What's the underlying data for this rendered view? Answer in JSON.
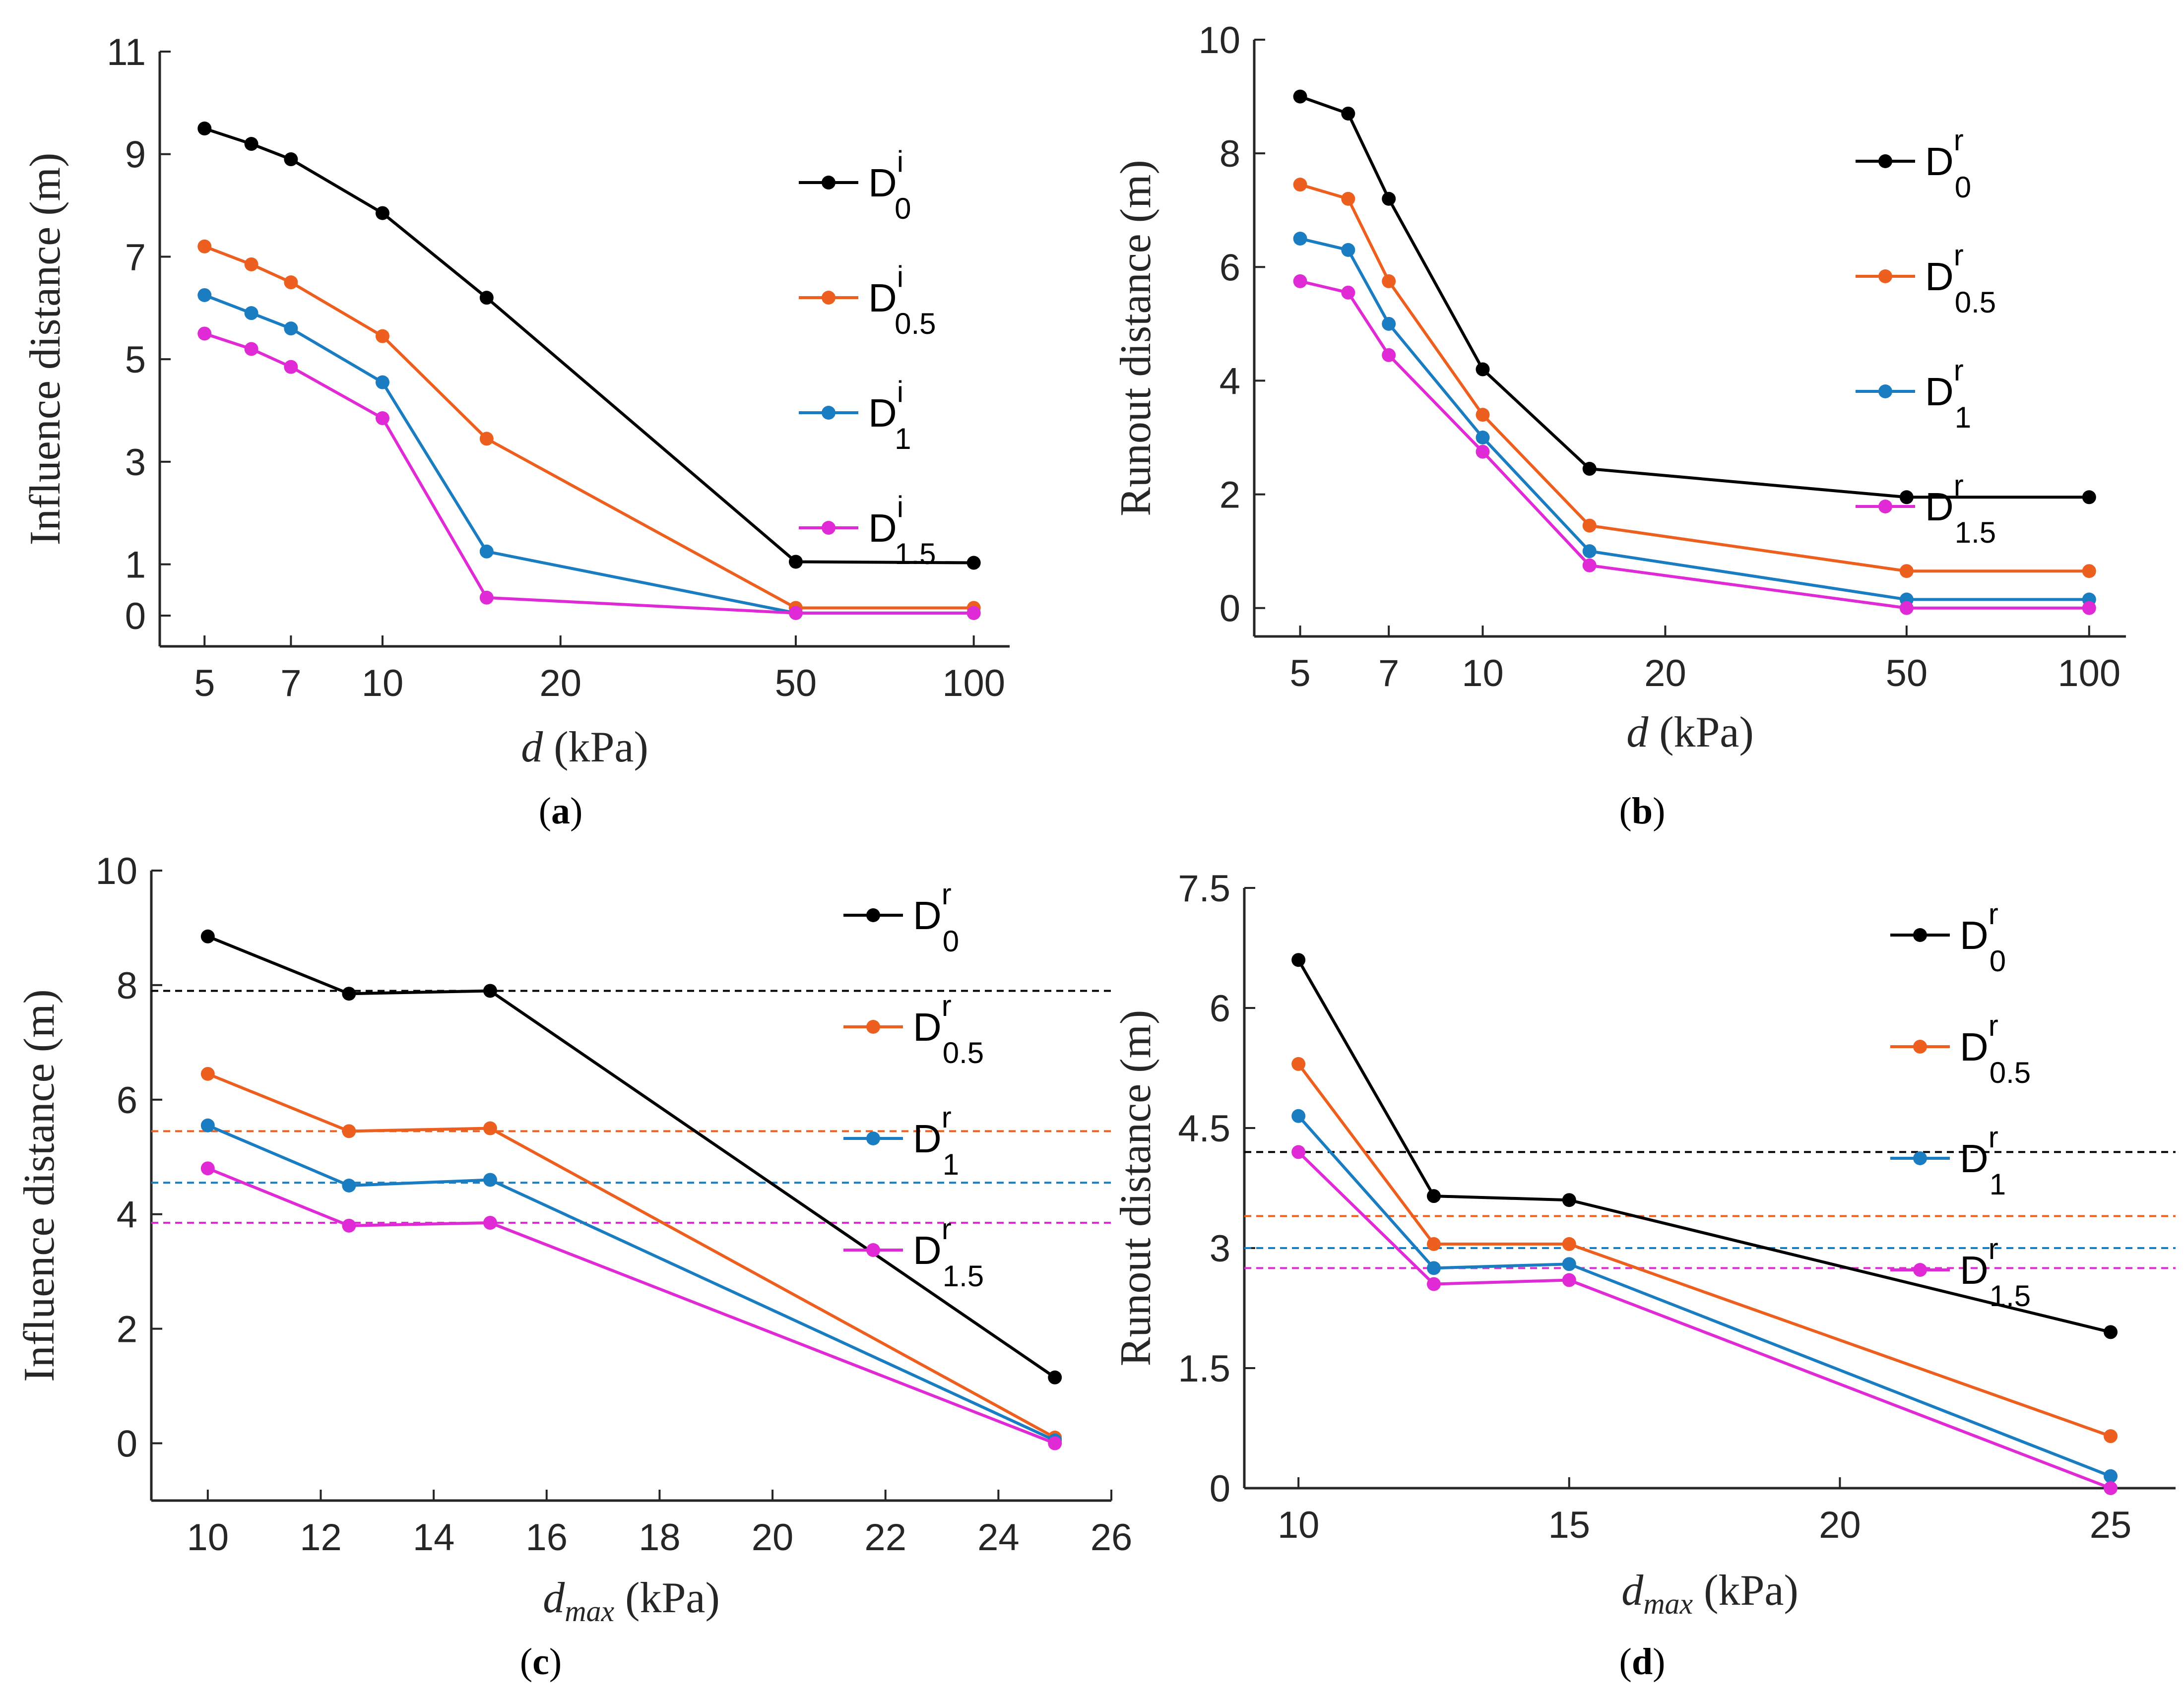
{
  "figure": {
    "panels": [
      {
        "caption": "a"
      },
      {
        "caption": "b"
      },
      {
        "caption": "c"
      },
      {
        "caption": "d"
      }
    ]
  },
  "colors": {
    "black": "#000000",
    "orange": "#ED5F1E",
    "blue": "#1A7CC1",
    "magenta": "#E02AD6"
  },
  "chart_data": [
    {
      "type": "line",
      "caption": "(a)",
      "xscale": "log",
      "xlabel": "d (kPa)",
      "ylabel": "Influence distance (m)",
      "xlim": [
        4.2,
        115
      ],
      "ylim": [
        -0.6,
        11
      ],
      "xticks": [
        5,
        7,
        10,
        20,
        50,
        100
      ],
      "yticks": [
        0,
        1,
        3,
        5,
        7,
        9,
        11
      ],
      "x": [
        5,
        6,
        7,
        10,
        15,
        50,
        100
      ],
      "series": [
        {
          "name": "D",
          "sup": "i",
          "sub": "0",
          "color": "#000000",
          "values": [
            9.5,
            9.2,
            8.9,
            7.85,
            6.2,
            1.05,
            1.03
          ]
        },
        {
          "name": "D",
          "sup": "i",
          "sub": "0.5",
          "color": "#ED5F1E",
          "values": [
            7.2,
            6.85,
            6.5,
            5.45,
            3.45,
            0.15,
            0.15
          ]
        },
        {
          "name": "D",
          "sup": "i",
          "sub": "1",
          "color": "#1A7CC1",
          "values": [
            6.25,
            5.9,
            5.6,
            4.55,
            1.25,
            0.05,
            0.05
          ]
        },
        {
          "name": "D",
          "sup": "i",
          "sub": "1.5",
          "color": "#E02AD6",
          "values": [
            5.5,
            5.2,
            4.85,
            3.85,
            0.35,
            0.05,
            0.05
          ]
        }
      ],
      "legend": "upper-right"
    },
    {
      "type": "line",
      "caption": "(b)",
      "xscale": "log",
      "xlabel": "d (kPa)",
      "ylabel": "Runout distance (m)",
      "xlim": [
        4.2,
        115
      ],
      "ylim": [
        -0.5,
        10
      ],
      "xticks": [
        5,
        7,
        10,
        20,
        50,
        100
      ],
      "yticks": [
        0,
        2,
        4,
        6,
        8,
        10
      ],
      "x": [
        5,
        6,
        7,
        10,
        15,
        50,
        100
      ],
      "series": [
        {
          "name": "D",
          "sup": "r",
          "sub": "0",
          "color": "#000000",
          "values": [
            9.0,
            8.7,
            7.2,
            4.2,
            2.45,
            1.95,
            1.95
          ]
        },
        {
          "name": "D",
          "sup": "r",
          "sub": "0.5",
          "color": "#ED5F1E",
          "values": [
            7.45,
            7.2,
            5.75,
            3.4,
            1.45,
            0.65,
            0.65
          ]
        },
        {
          "name": "D",
          "sup": "r",
          "sub": "1",
          "color": "#1A7CC1",
          "values": [
            6.5,
            6.3,
            5.0,
            3.0,
            1.0,
            0.15,
            0.15
          ]
        },
        {
          "name": "D",
          "sup": "r",
          "sub": "1.5",
          "color": "#E02AD6",
          "values": [
            5.75,
            5.55,
            4.45,
            2.75,
            0.75,
            0.0,
            0.0
          ]
        }
      ],
      "legend": "upper-right"
    },
    {
      "type": "line",
      "caption": "(c)",
      "xscale": "linear",
      "xlabel": "d_max (kPa)",
      "ylabel": "Influence distance (m)",
      "xlim": [
        9,
        26
      ],
      "ylim": [
        -1,
        10
      ],
      "xticks": [
        10,
        12,
        14,
        16,
        18,
        20,
        22,
        24,
        26
      ],
      "yticks": [
        0,
        2,
        4,
        6,
        8,
        10
      ],
      "x": [
        10,
        12.5,
        15,
        25
      ],
      "series": [
        {
          "name": "D",
          "sup": "r",
          "sub": "0",
          "color": "#000000",
          "values": [
            8.85,
            7.85,
            7.9,
            1.15
          ],
          "reference": 7.9
        },
        {
          "name": "D",
          "sup": "r",
          "sub": "0.5",
          "color": "#ED5F1E",
          "values": [
            6.45,
            5.45,
            5.5,
            0.1
          ],
          "reference": 5.45
        },
        {
          "name": "D",
          "sup": "r",
          "sub": "1",
          "color": "#1A7CC1",
          "values": [
            5.55,
            4.5,
            4.6,
            0.05
          ],
          "reference": 4.55
        },
        {
          "name": "D",
          "sup": "r",
          "sub": "1.5",
          "color": "#E02AD6",
          "values": [
            4.8,
            3.8,
            3.85,
            0.0
          ],
          "reference": 3.85
        }
      ],
      "legend": "upper-right"
    },
    {
      "type": "line",
      "caption": "(d)",
      "xscale": "linear",
      "xlabel": "d_max (kPa)",
      "ylabel": "Runout distance (m)",
      "xlim": [
        9,
        26.2
      ],
      "ylim": [
        0,
        7.5
      ],
      "xticks": [
        10,
        15,
        20,
        25
      ],
      "yticks": [
        0,
        1.5,
        3,
        4.5,
        6,
        7.5
      ],
      "x": [
        10,
        12.5,
        15,
        25
      ],
      "series": [
        {
          "name": "D",
          "sup": "r",
          "sub": "0",
          "color": "#000000",
          "values": [
            6.6,
            3.65,
            3.6,
            1.95
          ],
          "reference": 4.2
        },
        {
          "name": "D",
          "sup": "r",
          "sub": "0.5",
          "color": "#ED5F1E",
          "values": [
            5.3,
            3.05,
            3.05,
            0.65
          ],
          "reference": 3.4
        },
        {
          "name": "D",
          "sup": "r",
          "sub": "1",
          "color": "#1A7CC1",
          "values": [
            4.65,
            2.75,
            2.8,
            0.15
          ],
          "reference": 3.0
        },
        {
          "name": "D",
          "sup": "r",
          "sub": "1.5",
          "color": "#E02AD6",
          "values": [
            4.2,
            2.55,
            2.6,
            0.0
          ],
          "reference": 2.75
        }
      ],
      "legend": "upper-right"
    }
  ]
}
